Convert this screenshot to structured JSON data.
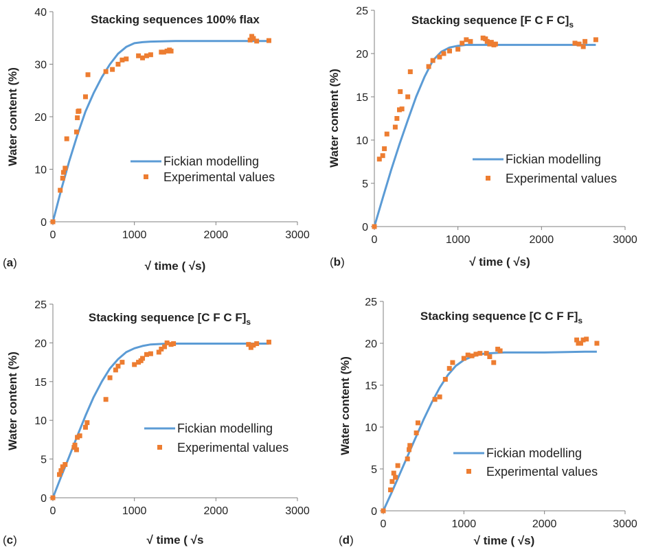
{
  "colors": {
    "model": "#5b9bd5",
    "experimental": "#ed7d31",
    "axis": "#7f7f7f"
  },
  "legend": {
    "model": "Fickian modelling",
    "experimental": "Experimental values"
  },
  "chart_data": [
    {
      "type": "line+scatter",
      "panel": "a",
      "title": "Stacking sequences 100% flax",
      "title_sub": "",
      "xlabel": "√ time ( √s)",
      "ylabel": "Water content (%)",
      "xlim": [
        0,
        3000
      ],
      "xticks": [
        0,
        1000,
        2000,
        3000
      ],
      "ylim": [
        0,
        40
      ],
      "yticks": [
        0,
        10,
        20,
        30,
        40
      ],
      "model": {
        "x": [
          0,
          100,
          200,
          300,
          400,
          500,
          600,
          700,
          800,
          900,
          1000,
          1100,
          1200,
          1500,
          2000,
          2500,
          2650
        ],
        "y": [
          0,
          6,
          11.5,
          16.5,
          21,
          24.5,
          27.5,
          30,
          32,
          33.3,
          34,
          34.2,
          34.3,
          34.4,
          34.4,
          34.4,
          34.4
        ]
      },
      "experimental": {
        "x": [
          0,
          90,
          120,
          130,
          150,
          170,
          290,
          300,
          310,
          320,
          400,
          430,
          650,
          730,
          800,
          850,
          900,
          1050,
          1100,
          1150,
          1200,
          1330,
          1360,
          1400,
          1430,
          1450,
          2420,
          2440,
          2460,
          2500,
          2650
        ],
        "y": [
          0,
          6,
          8.3,
          9.4,
          10.2,
          15.8,
          17.1,
          19.8,
          21,
          21.1,
          23.8,
          28,
          28.6,
          29,
          30,
          30.8,
          31,
          31.6,
          31.2,
          31.6,
          31.8,
          32.3,
          32.3,
          32.5,
          32.7,
          32.5,
          34.6,
          35.3,
          34.9,
          34.4,
          34.5
        ]
      }
    },
    {
      "type": "line+scatter",
      "panel": "b",
      "title": "Stacking sequence [F C F C]",
      "title_sub": "s",
      "xlabel": "√ time ( √s)",
      "ylabel": "Water content (%)",
      "xlim": [
        0,
        3000
      ],
      "xticks": [
        0,
        1000,
        2000,
        3000
      ],
      "ylim": [
        0,
        25
      ],
      "yticks": [
        0,
        5,
        10,
        15,
        20,
        25
      ],
      "model": {
        "x": [
          0,
          100,
          200,
          300,
          400,
          500,
          600,
          700,
          800,
          900,
          1000,
          1100,
          1200,
          1500,
          2000,
          2500,
          2650
        ],
        "y": [
          0,
          3.3,
          6.5,
          9.5,
          12.3,
          15,
          17.3,
          19.2,
          20.2,
          20.7,
          20.9,
          21,
          21,
          21,
          21,
          21,
          21
        ]
      },
      "experimental": {
        "x": [
          0,
          60,
          100,
          120,
          150,
          250,
          270,
          300,
          310,
          330,
          400,
          430,
          650,
          700,
          780,
          830,
          900,
          1000,
          1050,
          1100,
          1150,
          1300,
          1330,
          1350,
          1380,
          1400,
          1430,
          1450,
          2400,
          2450,
          2500,
          2520,
          2650
        ],
        "y": [
          0,
          7.8,
          8.2,
          9,
          10.7,
          11.5,
          12.5,
          13.5,
          15.6,
          13.6,
          15,
          17.9,
          18.5,
          19.2,
          19.6,
          20,
          20.3,
          20.5,
          21.2,
          21.6,
          21.4,
          21.8,
          21.7,
          21.4,
          21.1,
          21.3,
          21,
          21.1,
          21.2,
          21.1,
          20.8,
          21.4,
          21.6
        ]
      }
    },
    {
      "type": "line+scatter",
      "panel": "c",
      "title": "Stacking sequence [C F C F]",
      "title_sub": "s",
      "xlabel": "√ time ( √s",
      "ylabel": "Water content (%)",
      "xlim": [
        0,
        3000
      ],
      "xticks": [
        0,
        1000,
        2000,
        3000
      ],
      "ylim": [
        0,
        25
      ],
      "yticks": [
        0,
        5,
        10,
        15,
        20,
        25
      ],
      "model": {
        "x": [
          0,
          100,
          200,
          300,
          400,
          500,
          600,
          700,
          800,
          900,
          1000,
          1100,
          1200,
          1300,
          1400,
          1500,
          2000,
          2500,
          2650
        ],
        "y": [
          0,
          2.7,
          5.3,
          8,
          10.6,
          13,
          15,
          16.7,
          17.9,
          18.8,
          19.3,
          19.6,
          19.8,
          19.85,
          19.9,
          19.9,
          19.9,
          19.9,
          19.9
        ]
      },
      "experimental": {
        "x": [
          0,
          80,
          100,
          120,
          150,
          260,
          270,
          290,
          300,
          330,
          400,
          420,
          650,
          700,
          770,
          800,
          850,
          1000,
          1050,
          1080,
          1100,
          1150,
          1200,
          1300,
          1330,
          1370,
          1400,
          1450,
          1480,
          2400,
          2430,
          2460,
          2500,
          2650
        ],
        "y": [
          0,
          3,
          3.5,
          4,
          4.3,
          6.5,
          6.8,
          6.2,
          7.8,
          8,
          9.1,
          9.7,
          12.7,
          15.5,
          16.5,
          17,
          17.5,
          17.2,
          17.5,
          17.7,
          18,
          18.5,
          18.6,
          18.8,
          19.2,
          19.5,
          20,
          19.8,
          19.9,
          19.8,
          19.4,
          19.7,
          19.9,
          20.1
        ]
      }
    },
    {
      "type": "line+scatter",
      "panel": "d",
      "title": "Stacking sequence [C C F F]",
      "title_sub": "s",
      "xlabel": "√ time ( √s)",
      "ylabel": "Water content (%)",
      "xlim": [
        0,
        3000
      ],
      "xticks": [
        0,
        1000,
        2000,
        3000
      ],
      "ylim": [
        0,
        25
      ],
      "yticks": [
        0,
        5,
        10,
        15,
        20,
        25
      ],
      "model": {
        "x": [
          0,
          100,
          200,
          300,
          400,
          500,
          600,
          700,
          800,
          900,
          1000,
          1100,
          1200,
          1300,
          1500,
          2000,
          2500,
          2650
        ],
        "y": [
          0,
          2.1,
          4.3,
          6.5,
          8.7,
          10.9,
          12.9,
          14.7,
          16.2,
          17.3,
          18,
          18.4,
          18.7,
          18.8,
          18.9,
          18.9,
          19,
          19
        ]
      },
      "experimental": {
        "x": [
          0,
          90,
          110,
          130,
          150,
          180,
          300,
          320,
          330,
          410,
          430,
          640,
          700,
          770,
          820,
          860,
          1000,
          1050,
          1100,
          1150,
          1200,
          1280,
          1320,
          1370,
          1420,
          1450,
          2400,
          2420,
          2450,
          2480,
          2520,
          2650
        ],
        "y": [
          0,
          2.5,
          3.5,
          4.5,
          4,
          5.4,
          6.2,
          7.3,
          7.8,
          9.3,
          10.5,
          13.3,
          13.6,
          15.7,
          17,
          17.7,
          18.2,
          18.6,
          18.5,
          18.7,
          18.8,
          18.8,
          18.4,
          17.7,
          19.3,
          19.1,
          20.4,
          20,
          20,
          20.4,
          20.5,
          20
        ]
      }
    }
  ]
}
